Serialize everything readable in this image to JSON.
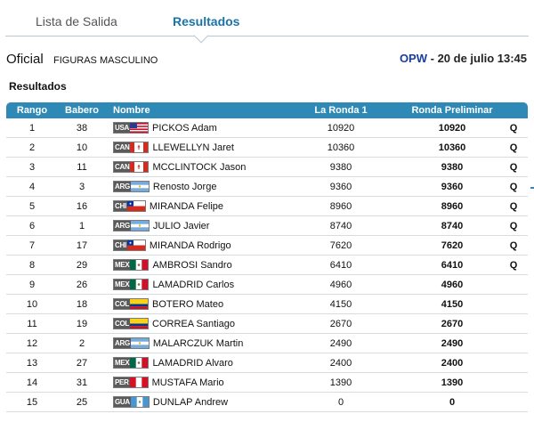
{
  "tabs": {
    "start_list": "Lista de Salida",
    "results": "Resultados"
  },
  "header": {
    "status": "Oficial",
    "event": "FIGURAS MASCULINO",
    "venue": "OPW",
    "separator": " - ",
    "date_time": "20 de julio 13:45"
  },
  "section_title": "Resultados",
  "table": {
    "columns": {
      "rank": "Rango",
      "bib": "Babero",
      "name": "Nombre",
      "round1": "La Ronda 1",
      "prelim": "Ronda Preliminar"
    },
    "rows": [
      {
        "rank": "1",
        "bib": "38",
        "nat": "USA",
        "name": "PICKOS Adam",
        "round1": "10920",
        "prelim": "10920",
        "q": "Q"
      },
      {
        "rank": "2",
        "bib": "10",
        "nat": "CAN",
        "name": "LLEWELLYN Jaret",
        "round1": "10360",
        "prelim": "10360",
        "q": "Q"
      },
      {
        "rank": "3",
        "bib": "11",
        "nat": "CAN",
        "name": "MCCLINTOCK Jason",
        "round1": "9380",
        "prelim": "9380",
        "q": "Q"
      },
      {
        "rank": "4",
        "bib": "3",
        "nat": "ARG",
        "name": "Renosto Jorge",
        "round1": "9360",
        "prelim": "9360",
        "q": "Q"
      },
      {
        "rank": "5",
        "bib": "16",
        "nat": "CHI",
        "name": "MIRANDA Felipe",
        "round1": "8960",
        "prelim": "8960",
        "q": "Q"
      },
      {
        "rank": "6",
        "bib": "1",
        "nat": "ARG",
        "name": "JULIO Javier",
        "round1": "8740",
        "prelim": "8740",
        "q": "Q"
      },
      {
        "rank": "7",
        "bib": "17",
        "nat": "CHI",
        "name": "MIRANDA Rodrigo",
        "round1": "7620",
        "prelim": "7620",
        "q": "Q"
      },
      {
        "rank": "8",
        "bib": "29",
        "nat": "MEX",
        "name": "AMBROSI Sandro",
        "round1": "6410",
        "prelim": "6410",
        "q": "Q"
      },
      {
        "rank": "9",
        "bib": "26",
        "nat": "MEX",
        "name": "LAMADRID Carlos",
        "round1": "4960",
        "prelim": "4960",
        "q": ""
      },
      {
        "rank": "10",
        "bib": "18",
        "nat": "COL",
        "name": "BOTERO Mateo",
        "round1": "4150",
        "prelim": "4150",
        "q": ""
      },
      {
        "rank": "11",
        "bib": "19",
        "nat": "COL",
        "name": "CORREA Santiago",
        "round1": "2670",
        "prelim": "2670",
        "q": ""
      },
      {
        "rank": "12",
        "bib": "2",
        "nat": "ARG",
        "name": "MALARCZUK Martin",
        "round1": "2490",
        "prelim": "2490",
        "q": ""
      },
      {
        "rank": "13",
        "bib": "27",
        "nat": "MEX",
        "name": "LAMADRID Alvaro",
        "round1": "2400",
        "prelim": "2400",
        "q": ""
      },
      {
        "rank": "14",
        "bib": "31",
        "nat": "PER",
        "name": "MUSTAFA Mario",
        "round1": "1390",
        "prelim": "1390",
        "q": ""
      },
      {
        "rank": "15",
        "bib": "25",
        "nat": "GUA",
        "name": "DUNLAP Andrew",
        "round1": "0",
        "prelim": "0",
        "q": ""
      }
    ]
  },
  "colors": {
    "accent": "#2f89b6",
    "tab_active": "#1a73a8",
    "venue": "#1a3c9e"
  }
}
